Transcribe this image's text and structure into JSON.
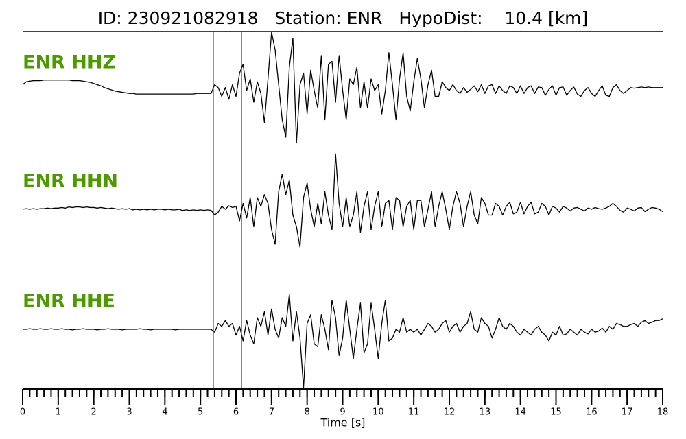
{
  "chart_data": {
    "type": "seismogram",
    "title": "ID: 230921082918   Station: ENR   HypoDist:    10.4 [km]",
    "xlabel": "Time [s]",
    "xlim": [
      0,
      18
    ],
    "xticks": [
      0,
      1,
      2,
      3,
      4,
      5,
      6,
      7,
      8,
      9,
      10,
      11,
      12,
      13,
      14,
      15,
      16,
      17,
      18
    ],
    "minor_tick_step": 0.2,
    "ylim": [
      -1,
      1
    ],
    "label_color": "#4c9a00",
    "picks": [
      {
        "x": 5.36,
        "color": "#e8000b"
      },
      {
        "x": 6.15,
        "color": "#0000ff"
      }
    ],
    "x": [
      0,
      0.1,
      0.2,
      0.3,
      0.4,
      0.5,
      0.6,
      0.7,
      0.8,
      0.9,
      1,
      1.1,
      1.2,
      1.3,
      1.4,
      1.5,
      1.6,
      1.7,
      1.8,
      1.9,
      2,
      2.1,
      2.2,
      2.3,
      2.4,
      2.5,
      2.6,
      2.7,
      2.8,
      2.9,
      3,
      3.1,
      3.2,
      3.3,
      3.4,
      3.5,
      3.6,
      3.7,
      3.8,
      3.9,
      4,
      4.1,
      4.2,
      4.3,
      4.4,
      4.5,
      4.6,
      4.7,
      4.8,
      4.9,
      5,
      5.1,
      5.2,
      5.3,
      5.4,
      5.5,
      5.6,
      5.7,
      5.8,
      5.9,
      6,
      6.1,
      6.2,
      6.3,
      6.4,
      6.5,
      6.6,
      6.7,
      6.8,
      6.9,
      7,
      7.1,
      7.2,
      7.3,
      7.4,
      7.5,
      7.6,
      7.7,
      7.8,
      7.9,
      8,
      8.1,
      8.2,
      8.3,
      8.4,
      8.5,
      8.6,
      8.7,
      8.8,
      8.9,
      9,
      9.1,
      9.2,
      9.3,
      9.4,
      9.5,
      9.6,
      9.7,
      9.8,
      9.9,
      10,
      10.1,
      10.2,
      10.3,
      10.4,
      10.5,
      10.6,
      10.7,
      10.8,
      10.9,
      11,
      11.1,
      11.2,
      11.3,
      11.4,
      11.5,
      11.6,
      11.7,
      11.8,
      11.9,
      12,
      12.1,
      12.2,
      12.3,
      12.4,
      12.5,
      12.6,
      12.7,
      12.8,
      12.9,
      13,
      13.1,
      13.2,
      13.3,
      13.4,
      13.5,
      13.6,
      13.7,
      13.8,
      13.9,
      14,
      14.1,
      14.2,
      14.3,
      14.4,
      14.5,
      14.6,
      14.7,
      14.8,
      14.9,
      15,
      15.1,
      15.2,
      15.3,
      15.4,
      15.5,
      15.6,
      15.7,
      15.8,
      15.9,
      16,
      16.1,
      16.2,
      16.3,
      16.4,
      16.5,
      16.6,
      16.7,
      16.8,
      16.9,
      17,
      17.1,
      17.2,
      17.3,
      17.4,
      17.5,
      17.6,
      17.7,
      17.8,
      17.9,
      18
    ],
    "series": [
      {
        "name": "ENR HHZ",
        "color": "#000000",
        "values": [
          0.1,
          0.15,
          0.16,
          0.17,
          0.17,
          0.17,
          0.18,
          0.18,
          0.18,
          0.18,
          0.18,
          0.18,
          0.18,
          0.18,
          0.17,
          0.17,
          0.17,
          0.16,
          0.15,
          0.14,
          0.12,
          0.1,
          0.08,
          0.05,
          0.03,
          0.01,
          -0.01,
          -0.02,
          -0.03,
          -0.04,
          -0.05,
          -0.05,
          -0.06,
          -0.06,
          -0.06,
          -0.06,
          -0.06,
          -0.06,
          -0.06,
          -0.06,
          -0.06,
          -0.06,
          -0.06,
          -0.06,
          -0.06,
          -0.06,
          -0.06,
          -0.06,
          -0.06,
          -0.05,
          -0.05,
          -0.05,
          -0.05,
          -0.05,
          0.1,
          0.05,
          -0.1,
          0.05,
          -0.15,
          0.1,
          -0.1,
          0.3,
          0.45,
          0.0,
          0.2,
          -0.2,
          0.15,
          -0.05,
          -0.55,
          0.2,
          1.0,
          0.7,
          0.1,
          -0.5,
          -0.8,
          0.4,
          0.9,
          -0.9,
          0.1,
          0.3,
          -0.4,
          0.35,
          0.0,
          -0.3,
          0.6,
          -0.5,
          0.45,
          0.5,
          -0.2,
          0.6,
          0.0,
          -0.5,
          0.2,
          0.1,
          0.4,
          -0.3,
          0.15,
          -0.3,
          0.2,
          0.0,
          0.1,
          -0.4,
          0.0,
          0.65,
          0.1,
          -0.5,
          0.2,
          0.65,
          -0.1,
          -0.35,
          0.15,
          0.55,
          0.2,
          -0.3,
          0.1,
          0.35,
          -0.1,
          -0.1,
          0.15,
          0.05,
          0.0,
          0.1,
          0.0,
          -0.05,
          0.05,
          -0.03,
          0.02,
          0.08,
          -0.02,
          0.1,
          -0.05,
          0.08,
          0.1,
          -0.05,
          0.08,
          0.0,
          -0.05,
          0.08,
          0.05,
          -0.05,
          0.08,
          -0.05,
          0.05,
          0.08,
          -0.05,
          0.06,
          0.05,
          -0.08,
          0.02,
          0.08,
          -0.08,
          0.05,
          0.06,
          -0.08,
          0.0,
          0.06,
          -0.06,
          -0.1,
          0.0,
          0.05,
          -0.05,
          -0.1,
          0.0,
          0.08,
          -0.08,
          -0.1,
          0.05,
          0.1,
          0.0,
          -0.05,
          0.0,
          0.05,
          0.04,
          0.05,
          0.06,
          0.05,
          0.06,
          0.05,
          0.05,
          0.05,
          0.05
        ]
      },
      {
        "name": "ENR HHN",
        "color": "#000000",
        "values": [
          0,
          0.01,
          0,
          0.01,
          0,
          0.01,
          0.01,
          0.02,
          0.01,
          0.02,
          0.02,
          0.03,
          0.02,
          0.04,
          0.03,
          0.04,
          0.04,
          0.03,
          0.04,
          0.03,
          0.03,
          0.02,
          0.03,
          0.02,
          0.01,
          0.02,
          0.01,
          0,
          0.01,
          0,
          0.01,
          -0.01,
          0,
          -0.01,
          0,
          -0.01,
          0,
          -0.01,
          0,
          0,
          -0.01,
          0,
          -0.01,
          -0.01,
          0,
          -0.02,
          -0.01,
          -0.02,
          -0.01,
          -0.02,
          -0.01,
          -0.02,
          -0.01,
          -0.02,
          -0.1,
          -0.05,
          0.05,
          0,
          0.06,
          0.03,
          0.05,
          -0.2,
          0.1,
          -0.15,
          0.2,
          -0.3,
          0.2,
          0.05,
          0.25,
          0.1,
          -0.35,
          -0.6,
          0.3,
          0.6,
          0.25,
          0.5,
          -0.1,
          -0.3,
          -0.65,
          0.2,
          0.45,
          0.0,
          -0.3,
          0.1,
          -0.25,
          0.3,
          -0.1,
          -0.35,
          0.95,
          0.1,
          -0.3,
          0.2,
          -0.3,
          -0.1,
          0.3,
          -0.4,
          0.05,
          0.3,
          -0.35,
          0.05,
          0.3,
          -0.3,
          0.1,
          0.15,
          -0.35,
          0.2,
          0.15,
          -0.3,
          0.05,
          0.15,
          -0.35,
          0.15,
          0.15,
          -0.3,
          0.0,
          0.3,
          -0.3,
          0.05,
          0.3,
          0.0,
          -0.35,
          0.05,
          0.3,
          0.1,
          -0.3,
          0.05,
          0.3,
          -0.1,
          -0.25,
          0.2,
          0.1,
          -0.1,
          -0.1,
          0.1,
          0.05,
          -0.1,
          0.05,
          0.12,
          -0.08,
          -0.05,
          0.12,
          -0.08,
          0.05,
          0.12,
          -0.08,
          -0.05,
          0.1,
          0.05,
          -0.1,
          0.05,
          0.02,
          -0.05,
          0.05,
          0.02,
          -0.03,
          0.02,
          0.03,
          0.0,
          -0.03,
          0.02,
          0.0,
          0.03,
          0.01,
          0.0,
          0.02,
          0.05,
          0.1,
          0.05,
          -0.02,
          -0.05,
          0.02,
          0.0,
          -0.03,
          0.02,
          0.03,
          -0.04,
          0.0,
          0.03,
          0.02,
          0.0,
          -0.04
        ]
      },
      {
        "name": "ENR HHE",
        "color": "#000000",
        "values": [
          0,
          0,
          0.01,
          0,
          0,
          0.01,
          0,
          0,
          0.01,
          0,
          0,
          0.01,
          0,
          0,
          -0.01,
          0,
          0,
          0.01,
          0,
          0,
          0,
          -0.01,
          0,
          0,
          0.01,
          0,
          0,
          0,
          -0.01,
          0,
          0,
          0,
          0,
          0.01,
          0,
          0,
          -0.01,
          0,
          0,
          0,
          0,
          0,
          0,
          -0.01,
          0,
          0,
          0,
          0,
          0,
          0,
          0,
          0,
          0,
          0,
          -0.05,
          0.1,
          0.05,
          0.15,
          0.05,
          0.1,
          -0.1,
          0.05,
          -0.2,
          0.15,
          -0.1,
          -0.25,
          0.2,
          0.05,
          0.3,
          -0.1,
          0.35,
          0.0,
          -0.15,
          0.2,
          0.05,
          0.6,
          -0.2,
          0.3,
          -0.15,
          -1.0,
          0.1,
          0.25,
          -0.25,
          -0.3,
          0.25,
          0.0,
          -0.35,
          0.5,
          0.2,
          -0.45,
          -0.15,
          0.5,
          0.0,
          -0.5,
          0.0,
          0.45,
          -0.4,
          -0.25,
          0.45,
          0.0,
          -0.5,
          0.1,
          0.5,
          -0.2,
          -0.15,
          0.0,
          -0.05,
          0.2,
          -0.05,
          0.0,
          -0.05,
          0.0,
          -0.1,
          0.0,
          0.1,
          0.05,
          -0.05,
          0.0,
          0.1,
          0.15,
          -0.05,
          0.05,
          0.1,
          -0.05,
          0.05,
          0.1,
          0.3,
          0.0,
          -0.05,
          0.2,
          0.1,
          0.05,
          -0.15,
          0.0,
          0.2,
          0.05,
          0.0,
          0.1,
          0.05,
          -0.05,
          -0.1,
          0.0,
          -0.05,
          -0.1,
          0.0,
          0.05,
          -0.05,
          -0.1,
          -0.2,
          -0.05,
          -0.1,
          0.05,
          -0.1,
          -0.08,
          0.0,
          -0.05,
          -0.1,
          0.0,
          -0.05,
          -0.08,
          0.0,
          -0.05,
          -0.03,
          0.02,
          -0.05,
          0.05,
          0.0,
          0.1,
          0.08,
          0.05,
          0.05,
          0.08,
          0.1,
          0.05,
          0.12,
          0.15,
          0.1,
          0.12,
          0.15,
          0.15,
          0.18
        ]
      }
    ]
  }
}
